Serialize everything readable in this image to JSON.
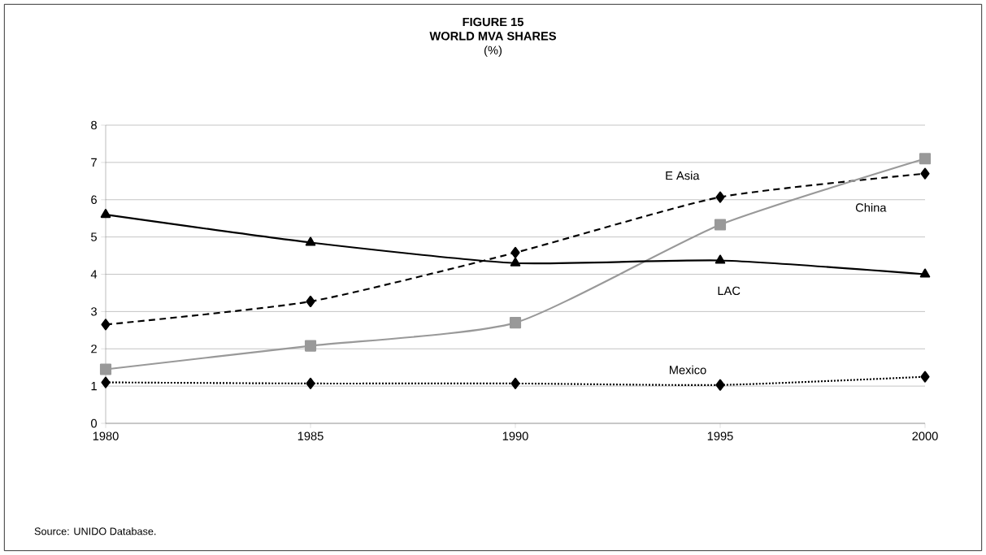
{
  "chart_data": {
    "type": "line",
    "title": "FIGURE 15",
    "subtitle": "WORLD MVA SHARES",
    "x": [
      1980,
      1985,
      1990,
      1995,
      2000
    ],
    "series": [
      {
        "name": "E Asia",
        "color": "#000000",
        "values": [
          2.65,
          3.27,
          4.58,
          6.07,
          6.7
        ],
        "marker": "diamond",
        "line_style": "dashed"
      },
      {
        "name": "China",
        "color": "#999999",
        "values": [
          1.45,
          2.08,
          2.7,
          5.33,
          7.1
        ],
        "marker": "square",
        "line_style": "solid"
      },
      {
        "name": "LAC",
        "color": "#000000",
        "values": [
          5.6,
          4.85,
          4.3,
          4.37,
          4.0
        ],
        "marker": "triangle",
        "line_style": "solid"
      },
      {
        "name": "Mexico",
        "color": "#000000",
        "values": [
          1.1,
          1.07,
          1.07,
          1.03,
          1.25
        ],
        "marker": "diamond",
        "line_style": "dotted"
      }
    ],
    "xlim": [
      1980,
      2000
    ],
    "xticks": [
      1980,
      1985,
      1990,
      1995,
      2000
    ],
    "ylim": [
      0,
      8
    ],
    "yticks": [
      0,
      1,
      2,
      3,
      4,
      5,
      6,
      7,
      8
    ],
    "grid": "y",
    "legend": false,
    "annotations": [
      "(%)",
      "Source: UNIDO Database."
    ]
  }
}
